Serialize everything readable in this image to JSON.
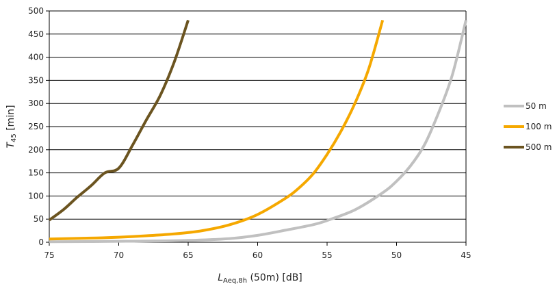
{
  "chart_data": {
    "type": "line",
    "x_reversed": true,
    "xlim": [
      75,
      45
    ],
    "ylim": [
      0,
      500
    ],
    "xticks": [
      75,
      70,
      65,
      60,
      55,
      50,
      45
    ],
    "yticks": [
      0,
      50,
      100,
      150,
      200,
      250,
      300,
      350,
      400,
      450,
      500
    ],
    "grid": "horizontal",
    "legend_position": "right",
    "xlabel": {
      "main": "L",
      "sub": "Aeq,8h",
      "rest": " (50m)  [dB]"
    },
    "ylabel": {
      "main": "T",
      "sub": "45",
      "rest": "  [min]"
    },
    "series": [
      {
        "name": "50 m",
        "color": "#c0c0c0",
        "points": [
          [
            75,
            1
          ],
          [
            70,
            2
          ],
          [
            65,
            4
          ],
          [
            62,
            8
          ],
          [
            60,
            15
          ],
          [
            58,
            26
          ],
          [
            56,
            38
          ],
          [
            55,
            47
          ],
          [
            53,
            70
          ],
          [
            51,
            107
          ],
          [
            50,
            132
          ],
          [
            49,
            165
          ],
          [
            48,
            210
          ],
          [
            47,
            278
          ],
          [
            46,
            360
          ],
          [
            45,
            480
          ]
        ]
      },
      {
        "name": "100 m",
        "color": "#f5a800",
        "points": [
          [
            75,
            7
          ],
          [
            72,
            9
          ],
          [
            70,
            11
          ],
          [
            68,
            14
          ],
          [
            66,
            18
          ],
          [
            64,
            25
          ],
          [
            62,
            38
          ],
          [
            60,
            60
          ],
          [
            58,
            95
          ],
          [
            57,
            118
          ],
          [
            56,
            148
          ],
          [
            55,
            190
          ],
          [
            54,
            240
          ],
          [
            53,
            300
          ],
          [
            52,
            375
          ],
          [
            51,
            480
          ]
        ]
      },
      {
        "name": "500 m",
        "color": "#6b5420",
        "points": [
          [
            75,
            48
          ],
          [
            74,
            70
          ],
          [
            73,
            97
          ],
          [
            72,
            122
          ],
          [
            71,
            150
          ],
          [
            70,
            160
          ],
          [
            69,
            210
          ],
          [
            68,
            265
          ],
          [
            67,
            318
          ],
          [
            66,
            390
          ],
          [
            65,
            480
          ]
        ]
      }
    ]
  }
}
